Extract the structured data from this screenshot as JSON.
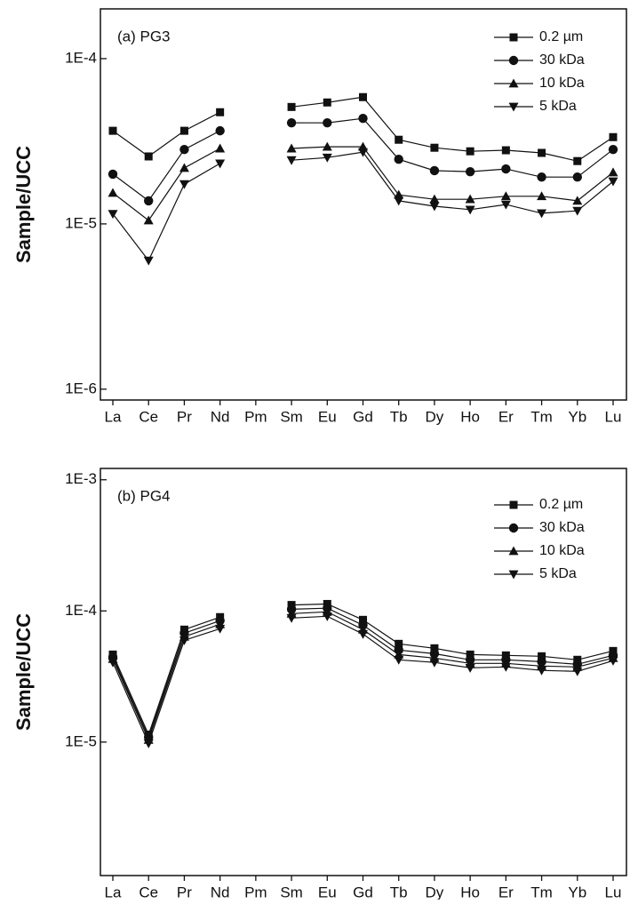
{
  "chart_data": [
    {
      "type": "line",
      "title": "(a) PG3",
      "y_label": "Sample/UCC",
      "yscale": "log",
      "legend": "upper right",
      "categories": [
        "La",
        "Ce",
        "Pr",
        "Nd",
        "Pm",
        "Sm",
        "Eu",
        "Gd",
        "Tb",
        "Dy",
        "Ho",
        "Er",
        "Tm",
        "Yb",
        "Lu"
      ],
      "ylim": [
        8.6e-07,
        0.0002
      ],
      "yticks": [
        {
          "value": 1e-06,
          "label": "1E-6"
        },
        {
          "value": 1e-05,
          "label": "1E-5"
        },
        {
          "value": 0.0001,
          "label": "1E-4"
        }
      ],
      "series": [
        {
          "name": "0.2 µm",
          "marker": "square",
          "color": "#111111",
          "values": [
            3.66e-05,
            2.56e-05,
            3.66e-05,
            4.74e-05,
            null,
            5.1e-05,
            5.43e-05,
            5.85e-05,
            3.23e-05,
            2.89e-05,
            2.75e-05,
            2.79e-05,
            2.69e-05,
            2.4e-05,
            3.35e-05
          ]
        },
        {
          "name": "30 kDa",
          "marker": "circle",
          "color": "#111111",
          "values": [
            2e-05,
            1.38e-05,
            2.82e-05,
            3.66e-05,
            null,
            4.09e-05,
            4.09e-05,
            4.35e-05,
            2.46e-05,
            2.1e-05,
            2.07e-05,
            2.15e-05,
            1.92e-05,
            1.92e-05,
            2.82e-05
          ]
        },
        {
          "name": "10 kDa",
          "marker": "triangle-up",
          "color": "#111111",
          "values": [
            1.54e-05,
            1.05e-05,
            2.18e-05,
            2.86e-05,
            null,
            2.86e-05,
            2.93e-05,
            2.93e-05,
            1.5e-05,
            1.41e-05,
            1.41e-05,
            1.47e-05,
            1.47e-05,
            1.38e-05,
            2.05e-05
          ]
        },
        {
          "name": "5 kDa",
          "marker": "triangle-down",
          "color": "#111111",
          "values": [
            1.15e-05,
            6e-06,
            1.74e-05,
            2.32e-05,
            null,
            2.43e-05,
            2.52e-05,
            2.72e-05,
            1.38e-05,
            1.28e-05,
            1.22e-05,
            1.31e-05,
            1.16e-05,
            1.2e-05,
            1.81e-05
          ]
        }
      ]
    },
    {
      "type": "line",
      "title": "(b) PG4",
      "y_label": "Sample/UCC",
      "yscale": "log",
      "legend": "upper right",
      "categories": [
        "La",
        "Ce",
        "Pr",
        "Nd",
        "Pm",
        "Sm",
        "Eu",
        "Gd",
        "Tb",
        "Dy",
        "Ho",
        "Er",
        "Tm",
        "Yb",
        "Lu"
      ],
      "ylim": [
        9.6e-07,
        0.00122
      ],
      "yticks": [
        {
          "value": 1e-05,
          "label": "1E-5"
        },
        {
          "value": 0.0001,
          "label": "1E-4"
        },
        {
          "value": 0.001,
          "label": "1E-3"
        }
      ],
      "series": [
        {
          "name": "0.2 µm",
          "marker": "square",
          "color": "#111111",
          "values": [
            4.65e-05,
            1.14e-05,
            7.2e-05,
            8.97e-05,
            null,
            0.000111,
            0.000113,
            8.55e-05,
            5.61e-05,
            5.19e-05,
            4.65e-05,
            4.58e-05,
            4.51e-05,
            4.24e-05,
            4.95e-05
          ]
        },
        {
          "name": "30 kDa",
          "marker": "circle",
          "color": "#111111",
          "values": [
            4.44e-05,
            1.09e-05,
            6.77e-05,
            8.42e-05,
            null,
            0.000103,
            0.000105,
            7.79e-05,
            5.03e-05,
            4.72e-05,
            4.24e-05,
            4.24e-05,
            4.1e-05,
            3.92e-05,
            4.58e-05
          ]
        },
        {
          "name": "10 kDa",
          "marker": "triangle-up",
          "color": "#111111",
          "values": [
            4.3e-05,
            1.04e-05,
            6.36e-05,
            7.91e-05,
            null,
            9.54e-05,
            9.84e-05,
            7.2e-05,
            4.65e-05,
            4.37e-05,
            3.98e-05,
            3.98e-05,
            3.8e-05,
            3.74e-05,
            4.37e-05
          ]
        },
        {
          "name": "5 kDa",
          "marker": "triangle-down",
          "color": "#111111",
          "values": [
            4.05e-05,
            9.77e-06,
            5.97e-05,
            7.32e-05,
            null,
            8.83e-05,
            9.1e-05,
            6.66e-05,
            4.24e-05,
            4.05e-05,
            3.68e-05,
            3.74e-05,
            3.52e-05,
            3.46e-05,
            4.17e-05
          ]
        }
      ]
    }
  ]
}
